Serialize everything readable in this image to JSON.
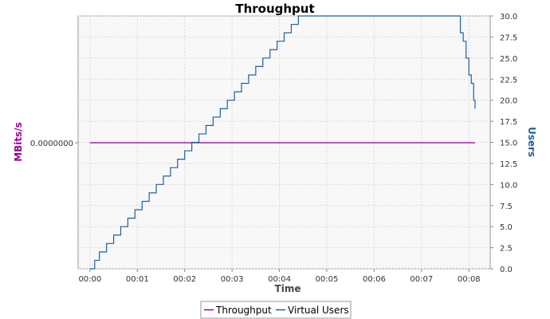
{
  "chart_data": {
    "type": "line",
    "title": "Throughput",
    "xlabel": "Time",
    "ylabel_left": "MBits/s",
    "ylabel_right": "Users",
    "x_tick_labels": [
      "00:00",
      "00:01",
      "00:02",
      "00:03",
      "00:04",
      "00:05",
      "00:06",
      "00:07",
      "00:08"
    ],
    "x_unit": "minutes",
    "xlim": [
      -0.25,
      8.45
    ],
    "left_axis": {
      "tick_labels": [
        "0.0000000"
      ],
      "value": 0
    },
    "right_axis": {
      "ylim": [
        0,
        30
      ],
      "tick_labels": [
        "0.0",
        "2.5",
        "5.0",
        "7.5",
        "10.0",
        "12.5",
        "15.0",
        "17.5",
        "20.0",
        "22.5",
        "25.0",
        "27.5",
        "30.0"
      ]
    },
    "grid": true,
    "legend_position": "bottom",
    "series": [
      {
        "name": "Throughput",
        "axis": "left",
        "color": "#990099",
        "x": [
          0.0,
          8.13
        ],
        "values": [
          0,
          0
        ]
      },
      {
        "name": "Virtual Users",
        "axis": "right",
        "color": "#1f5f9e",
        "step": true,
        "x": [
          0.0,
          0.1,
          0.2,
          0.35,
          0.5,
          0.65,
          0.8,
          0.95,
          1.1,
          1.25,
          1.4,
          1.55,
          1.7,
          1.85,
          2.0,
          2.15,
          2.3,
          2.45,
          2.6,
          2.75,
          2.9,
          3.05,
          3.2,
          3.35,
          3.5,
          3.65,
          3.8,
          3.95,
          4.1,
          4.25,
          4.4,
          4.55,
          4.7,
          4.85,
          7.75,
          7.82,
          7.88,
          7.94,
          8.0,
          8.05,
          8.1,
          8.13
        ],
        "values": [
          0,
          1,
          2,
          3,
          4,
          5,
          6,
          7,
          8,
          9,
          10,
          11,
          12,
          13,
          14,
          15,
          16,
          17,
          18,
          19,
          20,
          21,
          22,
          23,
          24,
          25,
          26,
          27,
          28,
          29,
          30,
          30,
          30,
          30,
          30,
          28,
          27,
          25,
          23,
          22,
          20,
          19
        ]
      }
    ]
  }
}
